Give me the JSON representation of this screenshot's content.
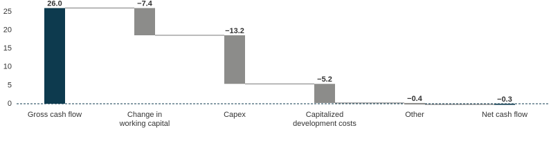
{
  "chart_data": {
    "type": "waterfall",
    "categories": [
      "Gross cash flow",
      "Change in\nworking capital",
      "Capex",
      "Capitalized\ndevelopment costs",
      "Other",
      "Net cash flow"
    ],
    "values": [
      26.0,
      -7.4,
      -13.2,
      -5.2,
      -0.4,
      -0.3
    ],
    "value_labels": [
      "26.0",
      "−7.4",
      "−13.2",
      "−5.2",
      "−0.4",
      "−0.3"
    ],
    "is_total": [
      true,
      false,
      false,
      false,
      false,
      true
    ],
    "colors": [
      "#0d3a4e",
      "#8c8c8a",
      "#8c8c8a",
      "#8c8c8a",
      "#8c8c8a",
      "#0d3a4e"
    ],
    "label_colors": [
      "#111111",
      "#777777",
      "#777777",
      "#777777",
      "#777777",
      "#111111"
    ],
    "ylim": [
      -1,
      28
    ],
    "yticks": [
      0,
      5,
      10,
      15,
      20,
      25
    ]
  }
}
